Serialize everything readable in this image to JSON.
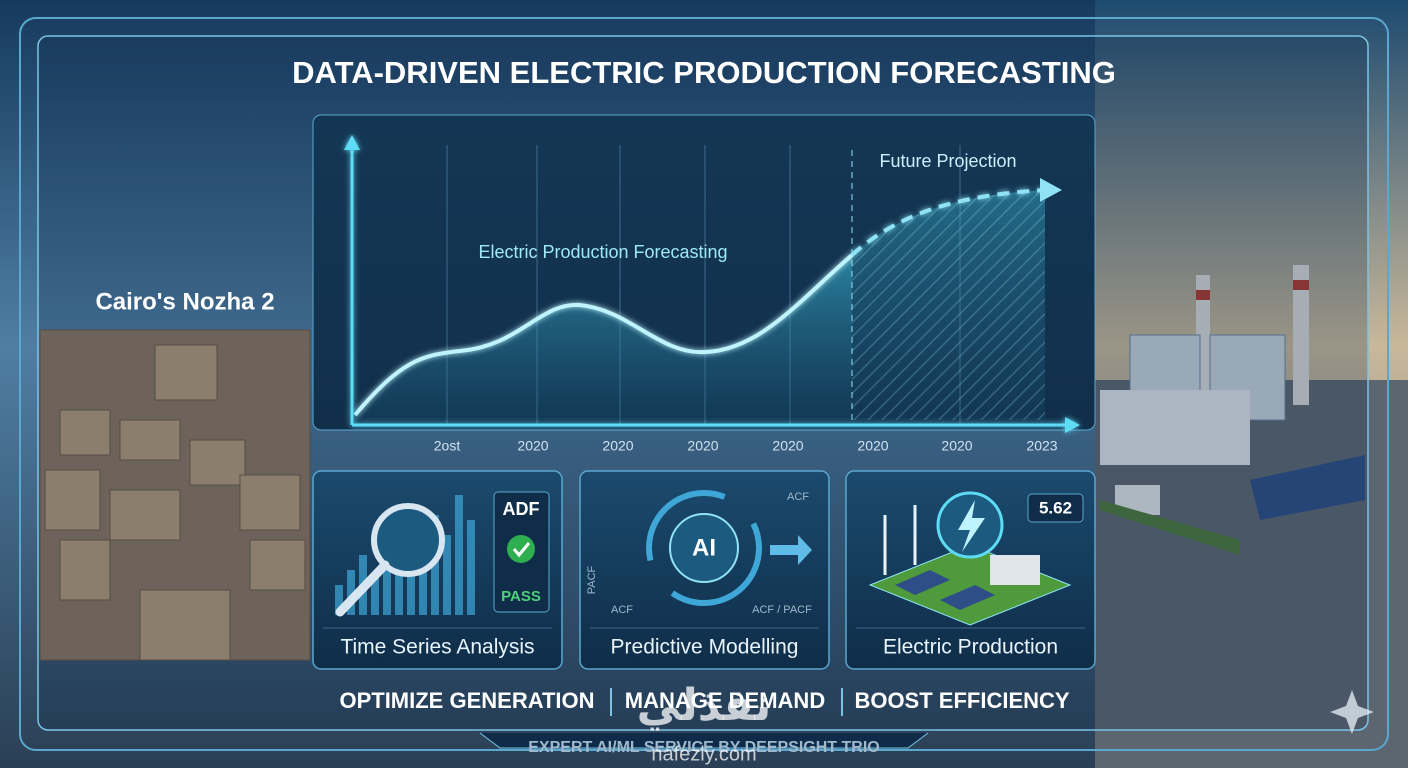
{
  "header": {
    "title": "DATA-DRIVEN ELECTRIC PRODUCTION FORECASTING",
    "location": "Cairo's Nozha 2"
  },
  "chart": {
    "label": "Electric Production Forecasting",
    "projection_label": "Future Projection",
    "x_labels": [
      "2ost",
      "2020",
      "2020",
      "2020",
      "2020",
      "2020",
      "2020",
      "2023"
    ]
  },
  "cards": [
    {
      "title": "Time Series Analysis",
      "badge_top": "ADF",
      "badge_bottom": "PASS"
    },
    {
      "title": "Predictive Modelling",
      "center": "AI",
      "labels": [
        "ACF",
        "PACF",
        "ACF",
        "ACF / PACF"
      ]
    },
    {
      "title": "Electric Production",
      "reading": 5.62
    }
  ],
  "tagline": [
    "OPTIMIZE GENERATION",
    "MANAGE DEMAND",
    "BOOST EFFICIENCY"
  ],
  "footer": "EXPERT AI/ML SERVICE BY DEEPSIGHT TRIO",
  "watermark": {
    "arabic": "نفذلي",
    "site": "nafezly.com"
  }
}
